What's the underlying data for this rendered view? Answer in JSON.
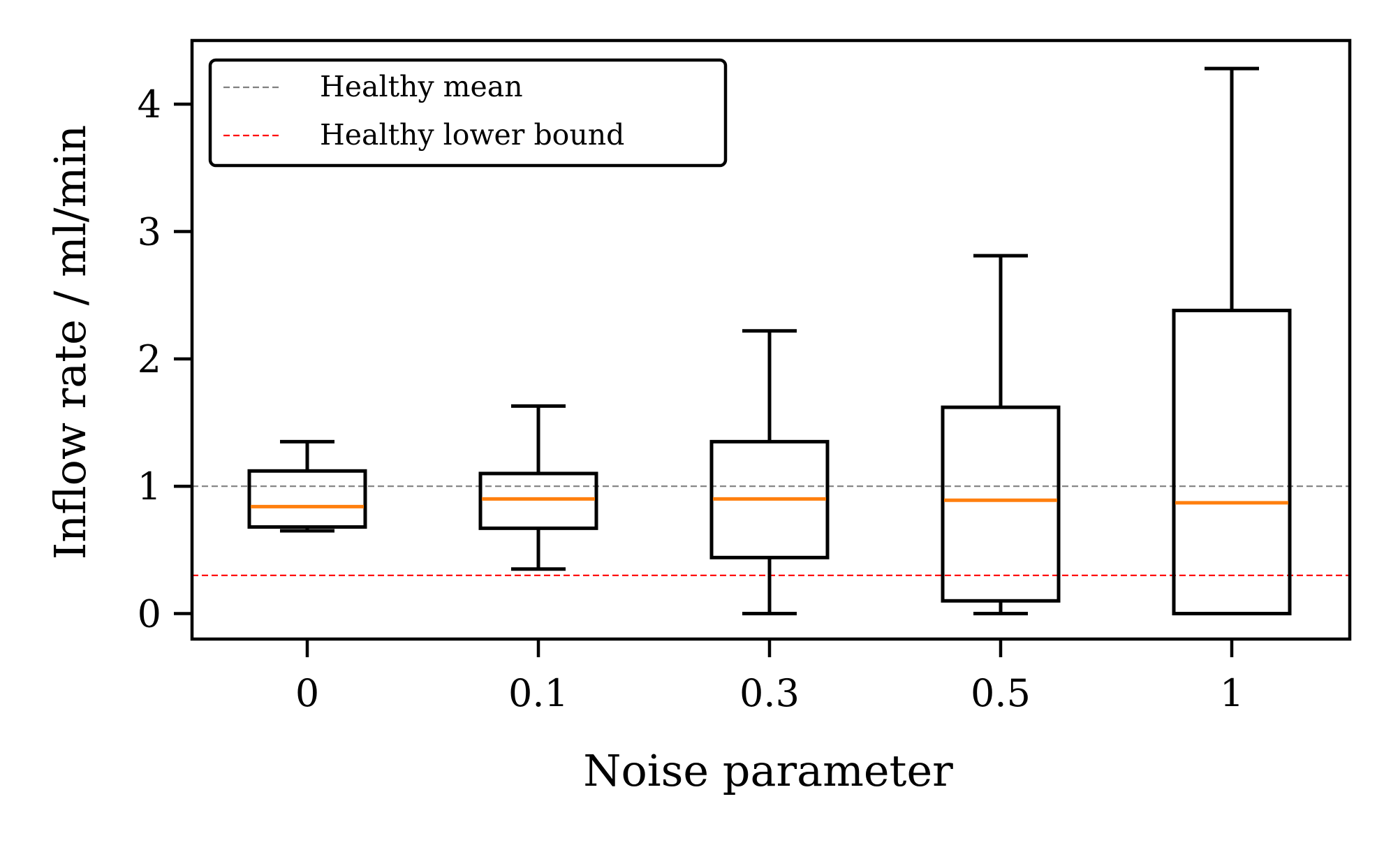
{
  "chart_data": {
    "type": "box",
    "xlabel": "Noise parameter",
    "ylabel": "Inflow rate / ml/min",
    "categories": [
      "0",
      "0.1",
      "0.3",
      "0.5",
      "1"
    ],
    "ylim": [
      -0.2,
      4.5
    ],
    "yticks": [
      0,
      1,
      2,
      3,
      4
    ],
    "grid": false,
    "legend_position": "top-left",
    "boxes": [
      {
        "category": "0",
        "whisker_low": 0.65,
        "q1": 0.68,
        "median": 0.84,
        "q3": 1.12,
        "whisker_high": 1.35
      },
      {
        "category": "0.1",
        "whisker_low": 0.35,
        "q1": 0.67,
        "median": 0.9,
        "q3": 1.1,
        "whisker_high": 1.63
      },
      {
        "category": "0.3",
        "whisker_low": 0.0,
        "q1": 0.44,
        "median": 0.9,
        "q3": 1.35,
        "whisker_high": 2.22
      },
      {
        "category": "0.5",
        "whisker_low": 0.0,
        "q1": 0.1,
        "median": 0.89,
        "q3": 1.62,
        "whisker_high": 2.81
      },
      {
        "category": "1",
        "whisker_low": 0.0,
        "q1": 0.0,
        "median": 0.87,
        "q3": 2.38,
        "whisker_high": 4.28
      }
    ],
    "reference_lines": [
      {
        "name": "Healthy mean",
        "y": 1.0,
        "color": "#808080",
        "style": "dashed"
      },
      {
        "name": "Healthy lower bound",
        "y": 0.3,
        "color": "#ff0000",
        "style": "dashed"
      }
    ],
    "colors": {
      "box": "#000000",
      "median": "#ff7f0e"
    }
  }
}
